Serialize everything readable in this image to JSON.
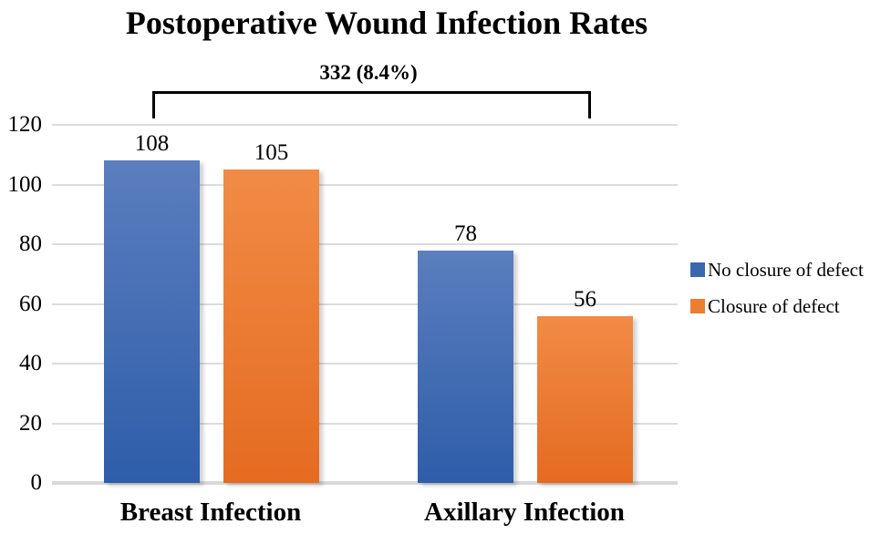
{
  "title": "Postoperative Wound Infection Rates",
  "chart_data": {
    "type": "bar",
    "title": "Postoperative Wound Infection Rates",
    "categories": [
      "Breast Infection",
      "Axillary Infection"
    ],
    "series": [
      {
        "name": "No closure of defect",
        "values": [
          108,
          78
        ],
        "color_top": "#5B7EBE",
        "color_bottom": "#2E5DA9",
        "legend_color": "#3B67AE"
      },
      {
        "name": "Closure of defect",
        "values": [
          105,
          56
        ],
        "color_top": "#F18B46",
        "color_bottom": "#E56B21",
        "legend_color": "#ED7D31"
      }
    ],
    "ylim": [
      0,
      120
    ],
    "yticks": [
      0,
      20,
      40,
      60,
      80,
      100,
      120
    ],
    "grid": true,
    "gridline_color": "#DCDCDC",
    "baseline_color": "#D9D9D9",
    "legend_position": "right",
    "annotation": "332 (8.4%)"
  }
}
